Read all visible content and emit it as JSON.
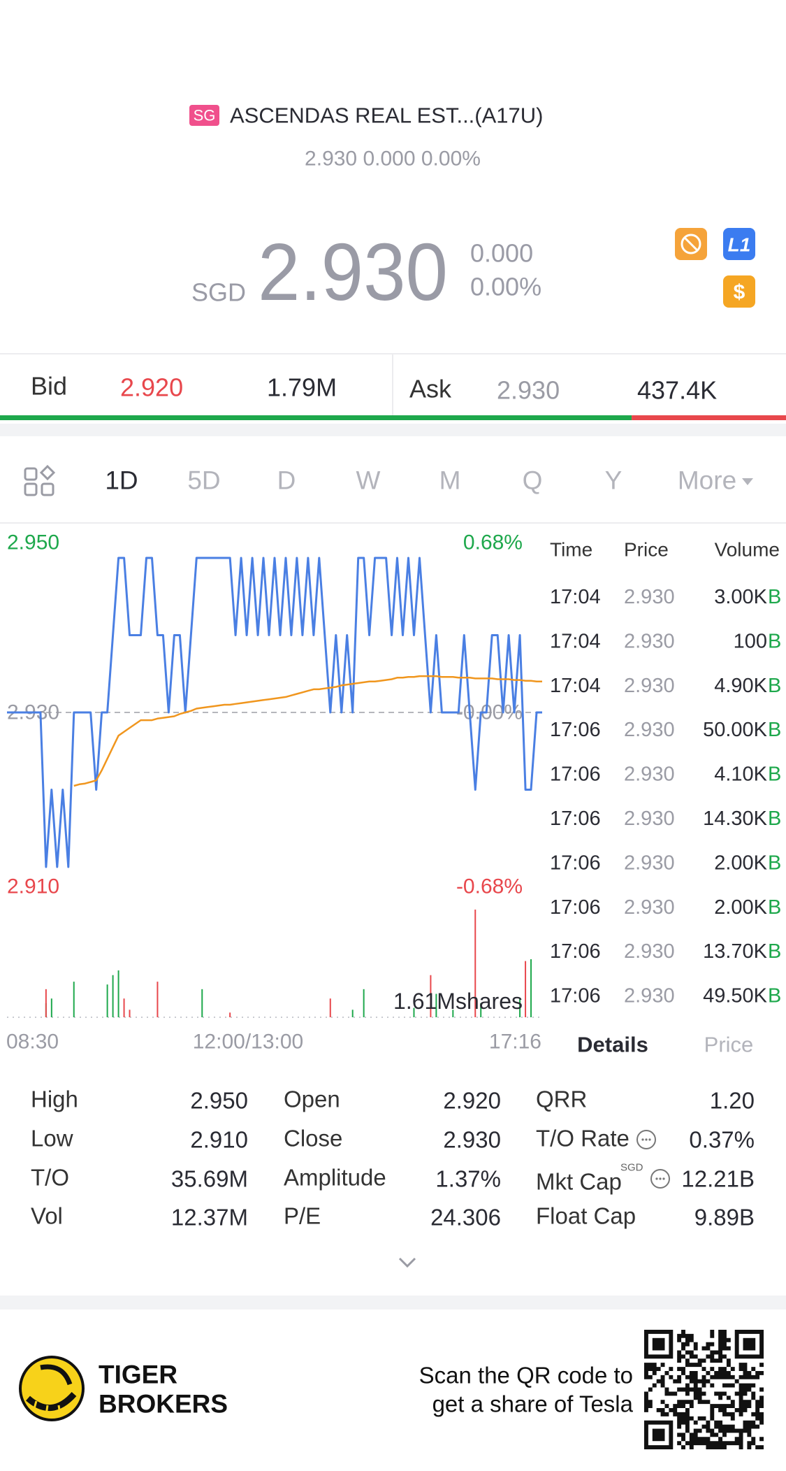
{
  "header": {
    "badge": "SG",
    "title": "ASCENDAS REAL EST...(A17U)",
    "subtitle": "2.930 0.000 0.00%"
  },
  "quote": {
    "currency": "SGD",
    "price": "2.930",
    "change": "0.000",
    "change_pct": "0.00%"
  },
  "badges": {
    "level": "L1",
    "currency": "$"
  },
  "order_book": {
    "bid_label": "Bid",
    "bid_price": "2.920",
    "bid_size": "1.79M",
    "ask_label": "Ask",
    "ask_price": "2.930",
    "ask_size": "437.4K",
    "bid_volume": 1790000,
    "ask_volume": 437400
  },
  "tabs": [
    "1D",
    "5D",
    "D",
    "W",
    "M",
    "Q",
    "Y",
    "More"
  ],
  "chart_data": {
    "type": "line",
    "up_color": "#1ea84c",
    "down_color": "#e8474c",
    "flat_color": "#9a9ba4",
    "ylim": [
      2.91,
      2.95
    ],
    "yticks": [
      {
        "value": 2.95,
        "label": "2.950"
      },
      {
        "value": 2.93,
        "label": "2.930"
      },
      {
        "value": 2.91,
        "label": "2.910"
      }
    ],
    "y2lim": [
      -0.68,
      0.68
    ],
    "y2ticks": [
      {
        "value": 0.68,
        "label": "0.68%"
      },
      {
        "value": 0,
        "label": "-0.00%"
      },
      {
        "value": -0.68,
        "label": "-0.68%"
      }
    ],
    "xtick_labels": [
      "08:30",
      "12:00/13:00",
      "17:16"
    ],
    "series": [
      {
        "color": "#4a7fe3",
        "values": [
          2.93,
          2.93,
          2.93,
          2.93,
          2.93,
          2.93,
          2.93,
          2.91,
          2.92,
          2.91,
          2.92,
          2.91,
          2.93,
          2.93,
          2.93,
          2.93,
          2.92,
          2.93,
          2.93,
          2.94,
          2.95,
          2.95,
          2.94,
          2.94,
          2.94,
          2.95,
          2.95,
          2.94,
          2.94,
          2.93,
          2.94,
          2.94,
          2.93,
          2.94,
          2.95,
          2.95,
          2.95,
          2.95,
          2.95,
          2.95,
          2.95,
          2.94,
          2.95,
          2.94,
          2.95,
          2.94,
          2.95,
          2.94,
          2.95,
          2.94,
          2.95,
          2.94,
          2.95,
          2.94,
          2.95,
          2.94,
          2.95,
          2.94,
          2.93,
          2.94,
          2.93,
          2.94,
          2.93,
          2.95,
          2.95,
          2.94,
          2.95,
          2.95,
          2.95,
          2.94,
          2.95,
          2.94,
          2.95,
          2.94,
          2.95,
          2.94,
          2.93,
          2.94,
          2.93,
          2.93,
          2.93,
          2.93,
          2.94,
          2.93,
          2.92,
          2.93,
          2.93,
          2.94,
          2.94,
          2.93,
          2.94,
          2.93,
          2.94,
          2.92,
          2.92,
          2.93,
          2.93
        ]
      },
      {
        "color": "#f0961e",
        "values": [
          null,
          null,
          null,
          null,
          null,
          null,
          null,
          null,
          null,
          null,
          null,
          null,
          2.9205,
          2.9207,
          2.9208,
          2.921,
          2.9212,
          2.9225,
          2.924,
          2.9255,
          2.927,
          2.9275,
          2.928,
          2.9285,
          2.929,
          2.929,
          2.929,
          2.9292,
          2.9293,
          2.9294,
          2.9295,
          2.9298,
          2.93,
          2.9302,
          2.9305,
          2.9306,
          2.9307,
          2.9308,
          2.9309,
          2.931,
          2.931,
          2.9311,
          2.9312,
          2.9313,
          2.9314,
          2.9315,
          2.9316,
          2.9317,
          2.9318,
          2.9319,
          2.932,
          2.9322,
          2.9324,
          2.9326,
          2.9328,
          2.933,
          2.933,
          2.9331,
          2.9332,
          2.9333,
          2.9335,
          2.9336,
          2.9337,
          2.9338,
          2.9339,
          2.934,
          2.934,
          2.9341,
          2.9342,
          2.9343,
          2.9345,
          2.9345,
          2.9346,
          2.9346,
          2.9347,
          2.9347,
          2.9347,
          2.9347,
          2.9346,
          2.9346,
          2.9346,
          2.9345,
          2.9345,
          2.9345,
          2.9344,
          2.9344,
          2.9344,
          2.9344,
          2.9343,
          2.9343,
          2.9343,
          2.9342,
          2.9342,
          2.9341,
          2.9341,
          2.934,
          2.934
        ]
      }
    ],
    "volume": {
      "label": "1.61Mshares",
      "ylim": [
        0,
        1610000
      ],
      "up": [
        null,
        null,
        null,
        null,
        null,
        null,
        null,
        210000,
        280000,
        null,
        null,
        null,
        532000,
        null,
        null,
        null,
        null,
        null,
        490000,
        630000,
        700000,
        null,
        null,
        null,
        null,
        null,
        null,
        null,
        null,
        null,
        null,
        null,
        null,
        null,
        null,
        420000,
        null,
        null,
        null,
        null,
        null,
        null,
        null,
        null,
        null,
        null,
        null,
        null,
        null,
        null,
        null,
        null,
        null,
        null,
        null,
        null,
        null,
        null,
        null,
        null,
        null,
        null,
        112000,
        null,
        420000,
        null,
        null,
        null,
        null,
        null,
        null,
        null,
        null,
        140000,
        null,
        null,
        null,
        350000,
        null,
        null,
        112000,
        null,
        null,
        null,
        null,
        210000,
        null,
        null,
        null,
        null,
        null,
        null,
        280000,
        null,
        868000,
        null,
        null
      ],
      "down": [
        null,
        null,
        null,
        null,
        null,
        null,
        null,
        420000,
        null,
        null,
        null,
        null,
        null,
        null,
        null,
        null,
        null,
        null,
        null,
        null,
        null,
        280000,
        112000,
        null,
        null,
        null,
        null,
        532000,
        null,
        null,
        null,
        null,
        null,
        null,
        null,
        null,
        null,
        null,
        null,
        null,
        70000,
        null,
        null,
        null,
        null,
        null,
        null,
        null,
        null,
        null,
        null,
        null,
        null,
        null,
        null,
        null,
        null,
        null,
        280000,
        null,
        null,
        null,
        null,
        null,
        null,
        null,
        null,
        null,
        null,
        null,
        null,
        null,
        null,
        null,
        null,
        null,
        630000,
        null,
        null,
        null,
        null,
        null,
        null,
        null,
        1610000,
        null,
        null,
        null,
        null,
        null,
        null,
        null,
        null,
        840000,
        null,
        null,
        null
      ]
    }
  },
  "trades": {
    "headers": [
      "Time",
      "Price",
      "Volume"
    ],
    "rows": [
      {
        "time": "17:04",
        "price": "2.930",
        "volume": "3.00K",
        "side": "B"
      },
      {
        "time": "17:04",
        "price": "2.930",
        "volume": "100",
        "side": "B"
      },
      {
        "time": "17:04",
        "price": "2.930",
        "volume": "4.90K",
        "side": "B"
      },
      {
        "time": "17:06",
        "price": "2.930",
        "volume": "50.00K",
        "side": "B"
      },
      {
        "time": "17:06",
        "price": "2.930",
        "volume": "4.10K",
        "side": "B"
      },
      {
        "time": "17:06",
        "price": "2.930",
        "volume": "14.30K",
        "side": "B"
      },
      {
        "time": "17:06",
        "price": "2.930",
        "volume": "2.00K",
        "side": "B"
      },
      {
        "time": "17:06",
        "price": "2.930",
        "volume": "2.00K",
        "side": "B"
      },
      {
        "time": "17:06",
        "price": "2.930",
        "volume": "13.70K",
        "side": "B"
      },
      {
        "time": "17:06",
        "price": "2.930",
        "volume": "49.50K",
        "side": "B"
      }
    ]
  },
  "detail_tabs": [
    "Details",
    "Price"
  ],
  "stats": [
    {
      "label": "High",
      "value": "2.950"
    },
    {
      "label": "Low",
      "value": "2.910"
    },
    {
      "label": "T/O",
      "value": "35.69M"
    },
    {
      "label": "Vol",
      "value": "12.37M"
    },
    {
      "label": "Open",
      "value": "2.920"
    },
    {
      "label": "Close",
      "value": "2.930"
    },
    {
      "label": "Amplitude",
      "value": "1.37%"
    },
    {
      "label": "P/E",
      "value": "24.306"
    },
    {
      "label": "QRR",
      "value": "1.20"
    },
    {
      "label": "T/O Rate",
      "value": "0.37%"
    },
    {
      "label": "Mkt Cap",
      "unit": "SGD",
      "value": "12.21B"
    },
    {
      "label": "Float Cap",
      "value": "9.89B"
    }
  ],
  "footer": {
    "brand_1": "TIGER",
    "brand_2": "BROKERS",
    "promo_1": "Scan the QR code to",
    "promo_2": "get a share of Tesla"
  }
}
